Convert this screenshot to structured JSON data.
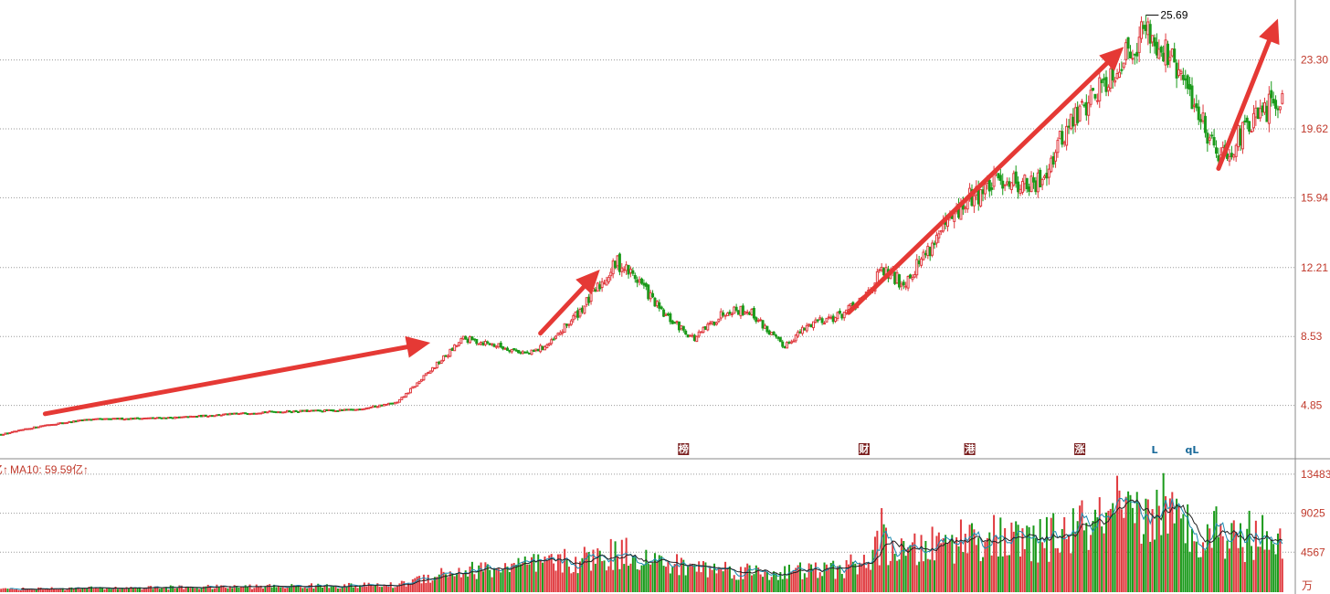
{
  "chart_data": [
    {
      "type": "candlestick",
      "price_ticks": [
        "4.85",
        "8.53",
        "12.21",
        "15.94",
        "19.62",
        "23.30"
      ],
      "ylim": [
        2.0,
        26.5
      ],
      "peak_label": "25.69",
      "peak_value": 25.69,
      "start_value": 3.3,
      "anchors": [
        [
          0,
          3.3
        ],
        [
          20,
          3.8
        ],
        [
          40,
          4.1
        ],
        [
          80,
          4.2
        ],
        [
          120,
          4.5
        ],
        [
          160,
          4.6
        ],
        [
          180,
          5.0
        ],
        [
          195,
          6.7
        ],
        [
          210,
          8.4
        ],
        [
          220,
          8.2
        ],
        [
          240,
          7.6
        ],
        [
          250,
          8.2
        ],
        [
          265,
          10.2
        ],
        [
          280,
          12.5
        ],
        [
          290,
          11.5
        ],
        [
          300,
          9.8
        ],
        [
          315,
          8.4
        ],
        [
          330,
          10.0
        ],
        [
          340,
          9.9
        ],
        [
          355,
          8.0
        ],
        [
          370,
          9.4
        ],
        [
          380,
          9.6
        ],
        [
          390,
          10.3
        ],
        [
          400,
          12.0
        ],
        [
          410,
          11.4
        ],
        [
          425,
          13.8
        ],
        [
          440,
          15.9
        ],
        [
          455,
          17.0
        ],
        [
          470,
          16.5
        ],
        [
          485,
          19.8
        ],
        [
          500,
          22.0
        ],
        [
          515,
          24.2
        ],
        [
          520,
          25.0
        ],
        [
          530,
          23.5
        ],
        [
          540,
          21.5
        ],
        [
          550,
          19.0
        ],
        [
          555,
          18.2
        ],
        [
          565,
          19.5
        ],
        [
          575,
          20.6
        ],
        [
          582,
          21.5
        ]
      ],
      "up_color": "#e0393e",
      "down_color": "#1a9a1a",
      "trend_arrows": [
        {
          "from": [
            20,
            4.4
          ],
          "to": [
            195,
            8.2
          ]
        },
        {
          "from": [
            245,
            8.7
          ],
          "to": [
            272,
            12.1
          ]
        },
        {
          "from": [
            385,
            9.8
          ],
          "to": [
            510,
            24.0
          ]
        },
        {
          "from": [
            553,
            17.5
          ],
          "to": [
            580,
            25.5
          ]
        }
      ],
      "markers": [
        {
          "index": 310,
          "label": "榜",
          "style": "box"
        },
        {
          "index": 392,
          "label": "财",
          "style": "box"
        },
        {
          "index": 440,
          "label": "港",
          "style": "box"
        },
        {
          "index": 490,
          "label": "涨",
          "style": "box"
        },
        {
          "index": 524,
          "label": "L",
          "style": "text"
        },
        {
          "index": 541,
          "label": "qL",
          "style": "text"
        }
      ],
      "marker_colors": {
        "box_bg": "#7a1f1f",
        "box_text": "#ffffff",
        "text": "#1a6a9a"
      }
    },
    {
      "type": "bar",
      "volume_ticks": [
        "4567",
        "9025",
        "13483"
      ],
      "unit_label": "万",
      "indicator_prefix": "亿↑",
      "indicator_label": "MA10: 59.59亿↑",
      "ylim": [
        0,
        14200
      ],
      "volume_shape": [
        [
          0,
          350
        ],
        [
          180,
          800
        ],
        [
          200,
          2200
        ],
        [
          230,
          2800
        ],
        [
          260,
          3500
        ],
        [
          285,
          4600
        ],
        [
          300,
          3200
        ],
        [
          350,
          2200
        ],
        [
          380,
          2600
        ],
        [
          395,
          3600
        ],
        [
          400,
          6000
        ],
        [
          410,
          4300
        ],
        [
          440,
          6400
        ],
        [
          470,
          5600
        ],
        [
          490,
          7400
        ],
        [
          510,
          8200
        ],
        [
          525,
          8800
        ],
        [
          545,
          7000
        ],
        [
          565,
          6100
        ],
        [
          582,
          6400
        ]
      ],
      "spikes": [
        {
          "index": 400,
          "value": 9600
        },
        {
          "index": 507,
          "value": 13300
        },
        {
          "index": 528,
          "value": 13600
        },
        {
          "index": 552,
          "value": 9800
        },
        {
          "index": 567,
          "value": 9300
        }
      ],
      "ma_colors": [
        "#1a8ab0",
        "#222222"
      ]
    }
  ]
}
